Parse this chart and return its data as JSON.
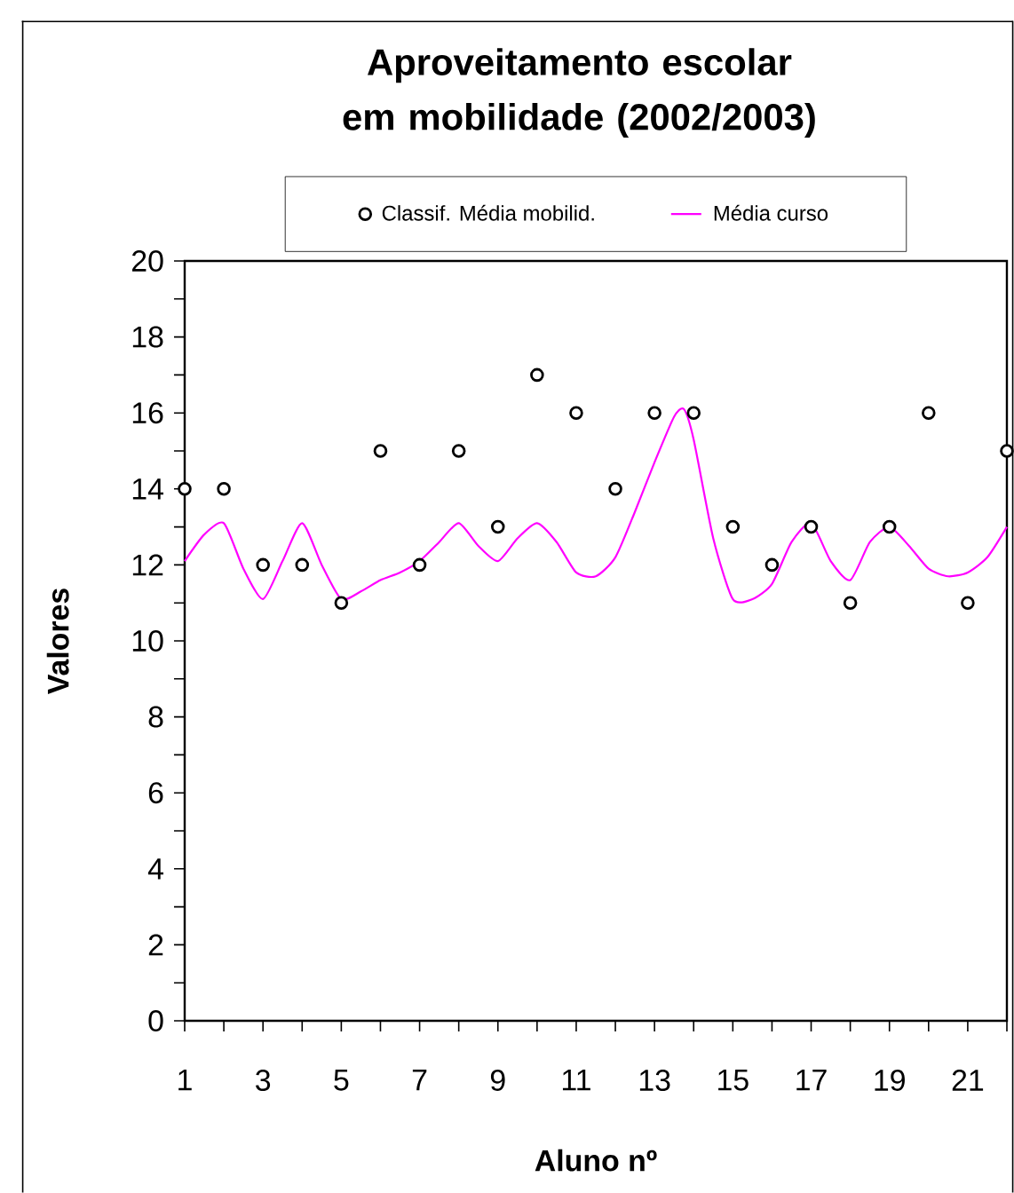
{
  "chart_data": {
    "type": "scatter",
    "title": "Aproveitamento escolar em mobilidade (2002/2003)",
    "xlabel": "Aluno nº",
    "ylabel": "Valores",
    "x": [
      1,
      2,
      3,
      4,
      5,
      6,
      7,
      8,
      9,
      10,
      11,
      12,
      13,
      14,
      15,
      16,
      17,
      18,
      19,
      20,
      21,
      22
    ],
    "series": [
      {
        "name": "Classif. Média mobilid.",
        "marker": "circle",
        "color": "#000000",
        "values": [
          14,
          14,
          12,
          12,
          11,
          15,
          12,
          15,
          13,
          17,
          16,
          14,
          16,
          16,
          13,
          12,
          13,
          11,
          13,
          16,
          11,
          15
        ]
      },
      {
        "name": "Média curso",
        "type": "line",
        "marker": "none",
        "color": "#ff00ff",
        "x": [
          1,
          1.5,
          2,
          2.5,
          3,
          3.5,
          4,
          4.5,
          5,
          5.5,
          6,
          6.5,
          7,
          7.5,
          8,
          8.5,
          9,
          9.5,
          10,
          10.5,
          11,
          11.5,
          12,
          12.5,
          13,
          13.5,
          13.75,
          14,
          14.5,
          15,
          15.5,
          16,
          16.5,
          17,
          17.5,
          18,
          18.5,
          19,
          19.5,
          20,
          20.5,
          21,
          21.5,
          22
        ],
        "values": [
          12.1,
          12.8,
          13.1,
          11.9,
          11.1,
          12.1,
          13.1,
          12,
          11.1,
          11.3,
          11.6,
          11.8,
          12.1,
          12.6,
          13.1,
          12.5,
          12.1,
          12.7,
          13.1,
          12.6,
          11.8,
          11.7,
          12.2,
          13.4,
          14.7,
          15.9,
          16.1,
          15.3,
          12.7,
          11.1,
          11.1,
          11.5,
          12.6,
          13.1,
          12.1,
          11.6,
          12.6,
          13,
          12.5,
          11.9,
          11.7,
          11.8,
          12.2,
          13
        ]
      }
    ],
    "xlim": [
      1,
      22
    ],
    "xticks": [
      1,
      {
        "value": 2,
        "label": null
      },
      3,
      {
        "value": 4,
        "label": null
      },
      5,
      {
        "value": 6,
        "label": null
      },
      7,
      {
        "value": 8,
        "label": null
      },
      9,
      {
        "value": 10,
        "label": null
      },
      11,
      {
        "value": 12,
        "label": null
      },
      13,
      {
        "value": 14,
        "label": null
      },
      15,
      {
        "value": 16,
        "label": null
      },
      17,
      {
        "value": 18,
        "label": null
      },
      19,
      {
        "value": 20,
        "label": null
      },
      21,
      {
        "value": 22,
        "label": null
      }
    ],
    "ylim": [
      0,
      20
    ],
    "yticks": [
      0,
      {
        "value": 1,
        "label": null
      },
      2,
      {
        "value": 3,
        "label": null
      },
      4,
      {
        "value": 5,
        "label": null
      },
      6,
      {
        "value": 7,
        "label": null
      },
      8,
      {
        "value": 9,
        "label": null
      },
      10,
      {
        "value": 11,
        "label": null
      },
      12,
      {
        "value": 13,
        "label": null
      },
      14,
      {
        "value": 15,
        "label": null
      },
      16,
      {
        "value": 17,
        "label": null
      },
      18,
      {
        "value": 19,
        "label": null
      },
      20
    ],
    "grid": false,
    "legend": "top"
  }
}
